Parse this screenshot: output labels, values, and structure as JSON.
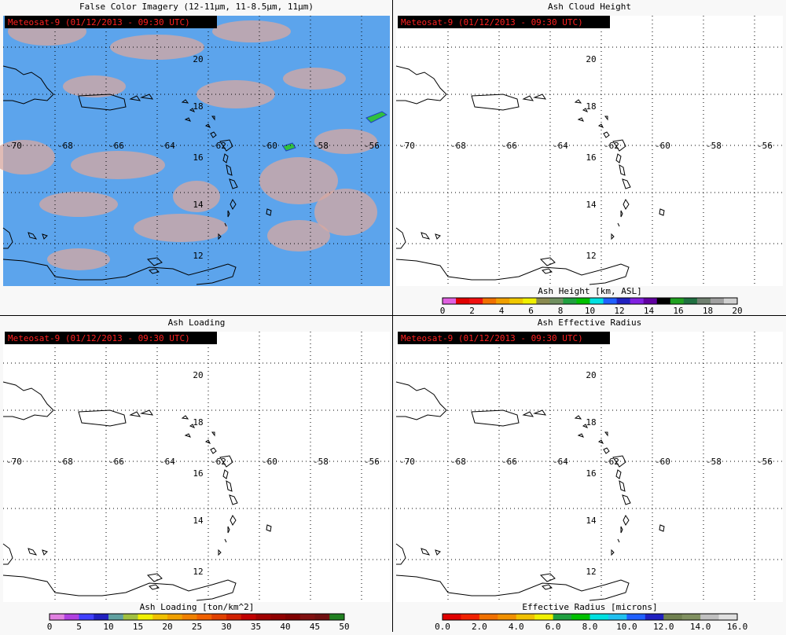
{
  "panels": [
    {
      "title": "False Color Imagery (12-11µm, 11-8.5µm, 11µm)",
      "stamp": "Meteosat-9  (01/12/2013 - 09:30 UTC)",
      "background": "false-color",
      "lat_labels": [
        "20",
        "18",
        "16",
        "14",
        "12"
      ],
      "lon_labels": [
        "-70",
        "-68",
        "-66",
        "-64",
        "-62",
        "-60",
        "-58",
        "-56"
      ]
    },
    {
      "title": "Ash Cloud Height",
      "stamp": "Meteosat-9  (01/12/2013 - 09:30 UTC)",
      "background": "white",
      "lat_labels": [
        "20",
        "18",
        "16",
        "14",
        "12"
      ],
      "lon_labels": [
        "-70",
        "-68",
        "-66",
        "-64",
        "-62",
        "-60",
        "-58",
        "-56"
      ],
      "colorbar": {
        "label": "Ash Height [km, ASL]",
        "ticks": [
          "0",
          "2",
          "4",
          "6",
          "8",
          "10",
          "12",
          "14",
          "16",
          "18",
          "20"
        ],
        "colors": [
          "#e060e0",
          "#e00000",
          "#f01010",
          "#f07000",
          "#f0a000",
          "#f0c800",
          "#f0f000",
          "#8a8a50",
          "#709060",
          "#20a040",
          "#00c000",
          "#00e0e0",
          "#2060ff",
          "#2020c0",
          "#8020e0",
          "#6000a0",
          "#000000",
          "#20a020",
          "#207040",
          "#708070",
          "#a0a0a0",
          "#d0d0d0"
        ]
      }
    },
    {
      "title": "Ash Loading",
      "stamp": "Meteosat-9  (01/12/2013 - 09:30 UTC)",
      "background": "white",
      "lat_labels": [
        "20",
        "18",
        "16",
        "14",
        "12"
      ],
      "lon_labels": [
        "-70",
        "-68",
        "-66",
        "-64",
        "-62",
        "-60",
        "-58",
        "-56"
      ],
      "colorbar": {
        "label": "Ash Loading [ton/km^2]",
        "ticks": [
          "0",
          "5",
          "10",
          "15",
          "20",
          "25",
          "30",
          "35",
          "40",
          "45",
          "50"
        ],
        "colors": [
          "#e080e0",
          "#b040e0",
          "#4040ff",
          "#2020c0",
          "#60a0a0",
          "#a0c040",
          "#f0f000",
          "#f0c000",
          "#f0a000",
          "#f08000",
          "#f06000",
          "#e04000",
          "#d02000",
          "#c00000",
          "#a00000",
          "#900000",
          "#800000",
          "#801010",
          "#701010",
          "#208020"
        ]
      }
    },
    {
      "title": "Ash Effective Radius",
      "stamp": "Meteosat-9  (01/12/2013 - 09:30 UTC)",
      "background": "white",
      "lat_labels": [
        "20",
        "18",
        "16",
        "14",
        "12"
      ],
      "lon_labels": [
        "-70",
        "-68",
        "-66",
        "-64",
        "-62",
        "-60",
        "-58",
        "-56"
      ],
      "colorbar": {
        "label": "Effective Radius [microns]",
        "ticks": [
          "0.0",
          "2.0",
          "4.0",
          "6.0",
          "8.0",
          "10.0",
          "12.0",
          "14.0",
          "16.0"
        ],
        "colors": [
          "#e00000",
          "#f02000",
          "#f07000",
          "#f09000",
          "#f0c000",
          "#f0f000",
          "#20a040",
          "#00c000",
          "#00e0e0",
          "#20c0f0",
          "#2060ff",
          "#2020c0",
          "#708050",
          "#809060",
          "#c0c0c0",
          "#e0e0e0"
        ]
      }
    }
  ]
}
